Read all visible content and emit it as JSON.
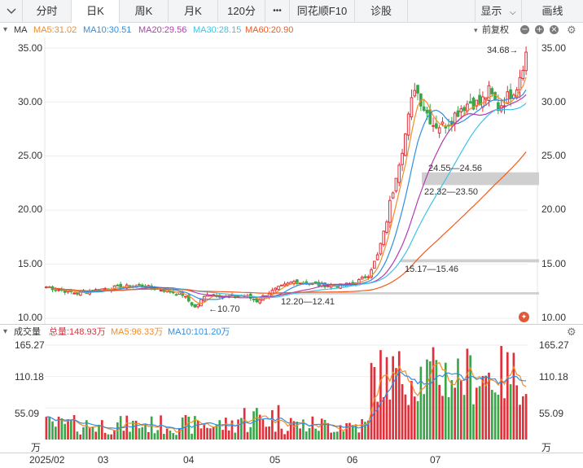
{
  "toolbar": {
    "tabs": [
      {
        "label": "分时"
      },
      {
        "label": "日K"
      },
      {
        "label": "周K"
      },
      {
        "label": "月K"
      },
      {
        "label": "120分"
      },
      {
        "label": "•••"
      },
      {
        "label": "同花顺F10"
      },
      {
        "label": "诊股"
      }
    ],
    "display_label": "显示",
    "draw_label": "画线"
  },
  "indicator": {
    "name": "MA",
    "ma5": "MA5:31.02",
    "ma10": "MA10:30.51",
    "ma20": "MA20:29.56",
    "ma30": "MA30:28.15",
    "ma60": "MA60:20.90",
    "adjust": "前复权",
    "colors": {
      "ma5": "#f28c28",
      "ma10": "#2e8fe6",
      "ma20": "#b33cb3",
      "ma30": "#3ec3e6",
      "ma60": "#f25a1e",
      "up": "#e0303a",
      "down": "#3aa64a",
      "volume_total": "#e0303a"
    }
  },
  "volume_header": {
    "name": "成交量",
    "total": "总量:148.93万",
    "ma5": "MA5:96.33万",
    "ma10": "MA10:101.20万"
  },
  "chart_data": {
    "type": "candlestick",
    "y_ticks": [
      "35.00",
      "30.00",
      "25.00",
      "20.00",
      "15.00",
      "10.00"
    ],
    "ylim": [
      10,
      35
    ],
    "volume_ticks": [
      "165.27",
      "110.18",
      "55.09"
    ],
    "volume_unit": "万",
    "x_labels": [
      "2025/02",
      "03",
      "04",
      "05",
      "06",
      "07"
    ],
    "annotations": {
      "high": "34.68→",
      "low": "←10.70",
      "zone1": "24.55—24.56",
      "zone2": "22.32—23.50",
      "zone3": "15.17—15.46",
      "zone4": "12.20—12.41"
    }
  }
}
